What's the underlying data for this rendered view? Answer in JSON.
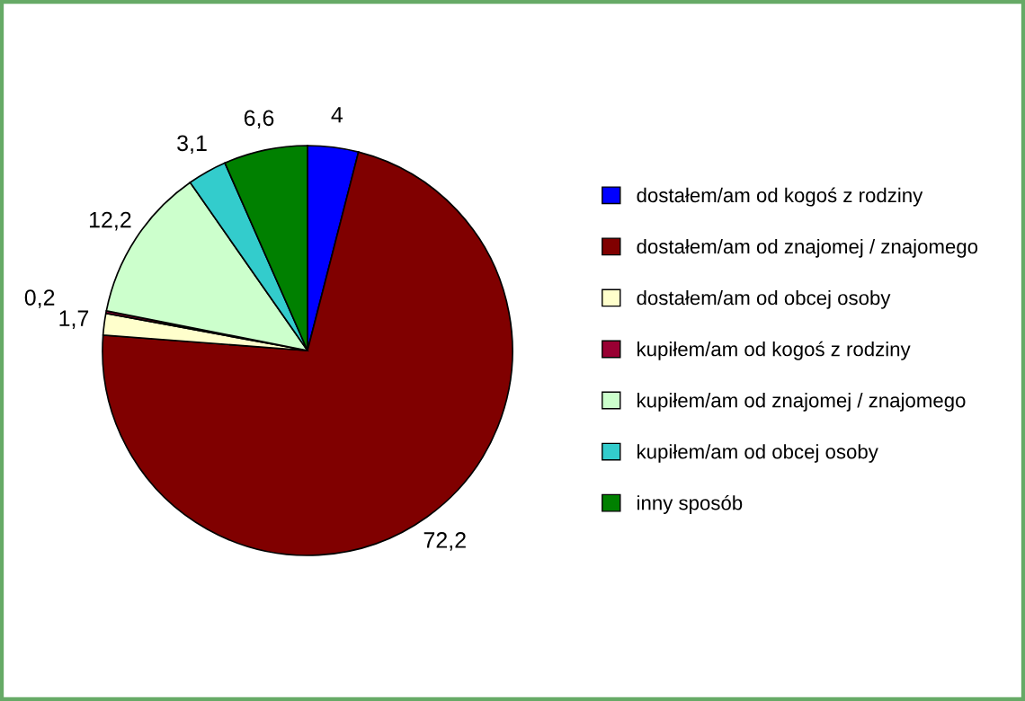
{
  "chart_data": {
    "type": "pie",
    "categories": [
      "dostałem/am od kogoś z rodziny",
      "dostałem/am od znajomej / znajomego",
      "dostałem/am od obcej osoby",
      "kupiłem/am od kogoś z rodziny",
      "kupiłem/am od znajomej / znajomego",
      "kupiłem/am od obcej osoby",
      "inny sposób"
    ],
    "values": [
      4,
      72.2,
      1.7,
      0.2,
      12.2,
      3.1,
      6.6
    ],
    "value_labels": [
      "4",
      "72,2",
      "1,7",
      "0,2",
      "12,2",
      "3,1",
      "6,6"
    ],
    "colors": [
      "#0000ff",
      "#800000",
      "#ffffcc",
      "#990033",
      "#ccffcc",
      "#33cccc",
      "#008000"
    ],
    "legend": "right"
  }
}
